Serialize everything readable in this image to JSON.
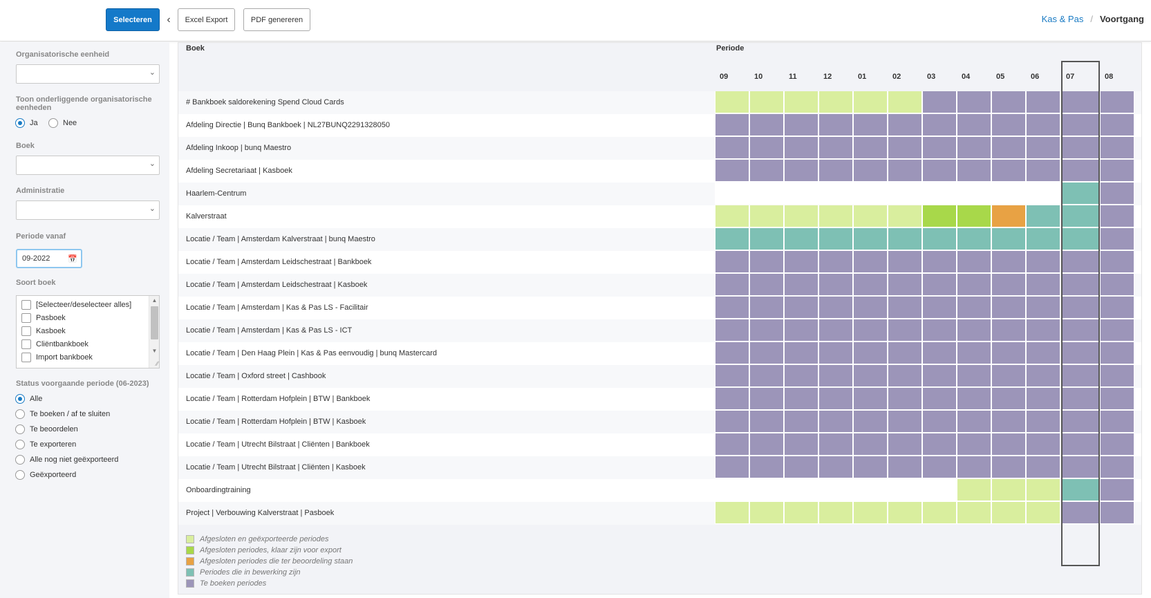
{
  "toolbar": {
    "select_label": "Selecteren",
    "excel_label": "Excel Export",
    "pdf_label": "PDF genereren"
  },
  "breadcrumb": {
    "parent": "Kas & Pas",
    "separator": "/",
    "current": "Voortgang"
  },
  "filters": {
    "org_unit_label": "Organisatorische eenheid",
    "org_unit_value": "",
    "sub_units_label_line1": "Toon onderliggende organisatorische",
    "sub_units_label_line2": "eenheden",
    "sub_units_options": [
      "Ja",
      "Nee"
    ],
    "sub_units_selected": "Ja",
    "book_label": "Boek",
    "book_value": "",
    "admin_label": "Administratie",
    "admin_value": "",
    "period_from_label": "Periode vanaf",
    "period_from_value": "09-2022",
    "book_type_label": "Soort boek",
    "book_type_options": [
      "[Selecteer/deselecteer alles]",
      "Pasboek",
      "Kasboek",
      "Cliëntbankboek",
      "Import bankboek"
    ],
    "status_label": "Status voorgaande periode (06-2023)",
    "status_options": [
      "Alle",
      "Te boeken / af te sluiten",
      "Te beoordelen",
      "Te exporteren",
      "Alle nog niet geëxporteerd",
      "Geëxporteerd"
    ],
    "status_selected": "Alle"
  },
  "grid": {
    "col_book": "Boek",
    "col_period": "Periode",
    "periods": [
      "09",
      "10",
      "11",
      "12",
      "01",
      "02",
      "03",
      "04",
      "05",
      "06",
      "07",
      "08"
    ],
    "highlighted_period": "07",
    "rows": [
      {
        "label": "# Bankboek saldorekening Spend Cloud Cards",
        "statuses": [
          "lg",
          "lg",
          "lg",
          "lg",
          "lg",
          "lg",
          "p",
          "p",
          "p",
          "p",
          "p",
          "p"
        ]
      },
      {
        "label": "Afdeling Directie | Bunq Bankboek | NL27BUNQ2291328050",
        "statuses": [
          "p",
          "p",
          "p",
          "p",
          "p",
          "p",
          "p",
          "p",
          "p",
          "p",
          "p",
          "p"
        ]
      },
      {
        "label": "Afdeling Inkoop | bunq Maestro",
        "statuses": [
          "p",
          "p",
          "p",
          "p",
          "p",
          "p",
          "p",
          "p",
          "p",
          "p",
          "p",
          "p"
        ]
      },
      {
        "label": "Afdeling Secretariaat | Kasboek",
        "statuses": [
          "p",
          "p",
          "p",
          "p",
          "p",
          "p",
          "p",
          "p",
          "p",
          "p",
          "p",
          "p"
        ]
      },
      {
        "label": "Haarlem-Centrum",
        "statuses": [
          "w",
          "w",
          "w",
          "w",
          "w",
          "w",
          "w",
          "w",
          "w",
          "w",
          "t",
          "p"
        ]
      },
      {
        "label": "Kalverstraat",
        "statuses": [
          "lg",
          "lg",
          "lg",
          "lg",
          "lg",
          "lg",
          "g",
          "g",
          "o",
          "t",
          "t",
          "p"
        ]
      },
      {
        "label": "Locatie / Team | Amsterdam Kalverstraat | bunq Maestro",
        "statuses": [
          "t",
          "t",
          "t",
          "t",
          "t",
          "t",
          "t",
          "t",
          "t",
          "t",
          "t",
          "p"
        ]
      },
      {
        "label": "Locatie / Team | Amsterdam Leidschestraat | Bankboek",
        "statuses": [
          "p",
          "p",
          "p",
          "p",
          "p",
          "p",
          "p",
          "p",
          "p",
          "p",
          "p",
          "p"
        ]
      },
      {
        "label": "Locatie / Team | Amsterdam Leidschestraat | Kasboek",
        "statuses": [
          "p",
          "p",
          "p",
          "p",
          "p",
          "p",
          "p",
          "p",
          "p",
          "p",
          "p",
          "p"
        ]
      },
      {
        "label": "Locatie / Team | Amsterdam | Kas & Pas LS - Facilitair",
        "statuses": [
          "p",
          "p",
          "p",
          "p",
          "p",
          "p",
          "p",
          "p",
          "p",
          "p",
          "p",
          "p"
        ]
      },
      {
        "label": "Locatie / Team | Amsterdam | Kas & Pas LS - ICT",
        "statuses": [
          "p",
          "p",
          "p",
          "p",
          "p",
          "p",
          "p",
          "p",
          "p",
          "p",
          "p",
          "p"
        ]
      },
      {
        "label": "Locatie / Team | Den Haag Plein | Kas & Pas eenvoudig | bunq Mastercard",
        "statuses": [
          "p",
          "p",
          "p",
          "p",
          "p",
          "p",
          "p",
          "p",
          "p",
          "p",
          "p",
          "p"
        ]
      },
      {
        "label": "Locatie / Team | Oxford street | Cashbook",
        "statuses": [
          "p",
          "p",
          "p",
          "p",
          "p",
          "p",
          "p",
          "p",
          "p",
          "p",
          "p",
          "p"
        ]
      },
      {
        "label": "Locatie / Team | Rotterdam Hofplein | BTW | Bankboek",
        "statuses": [
          "p",
          "p",
          "p",
          "p",
          "p",
          "p",
          "p",
          "p",
          "p",
          "p",
          "p",
          "p"
        ]
      },
      {
        "label": "Locatie / Team | Rotterdam Hofplein | BTW | Kasboek",
        "statuses": [
          "p",
          "p",
          "p",
          "p",
          "p",
          "p",
          "p",
          "p",
          "p",
          "p",
          "p",
          "p"
        ]
      },
      {
        "label": "Locatie / Team | Utrecht Bilstraat | Cliënten | Bankboek",
        "statuses": [
          "p",
          "p",
          "p",
          "p",
          "p",
          "p",
          "p",
          "p",
          "p",
          "p",
          "p",
          "p"
        ]
      },
      {
        "label": "Locatie / Team | Utrecht Bilstraat | Cliënten | Kasboek",
        "statuses": [
          "p",
          "p",
          "p",
          "p",
          "p",
          "p",
          "p",
          "p",
          "p",
          "p",
          "p",
          "p"
        ]
      },
      {
        "label": "Onboardingtraining",
        "statuses": [
          "w",
          "w",
          "w",
          "w",
          "w",
          "w",
          "w",
          "lg",
          "lg",
          "lg",
          "t",
          "p"
        ]
      },
      {
        "label": "Project | Verbouwing Kalverstraat | Pasboek",
        "statuses": [
          "lg",
          "lg",
          "lg",
          "lg",
          "lg",
          "lg",
          "lg",
          "lg",
          "lg",
          "lg",
          "p",
          "p"
        ]
      }
    ]
  },
  "legend": [
    {
      "key": "lg",
      "label": "Afgesloten en geëxporteerde periodes",
      "color": "#d9ee9e"
    },
    {
      "key": "g",
      "label": "Afgesloten periodes, klaar zijn voor export",
      "color": "#a8d84a"
    },
    {
      "key": "o",
      "label": "Afgesloten periodes die ter beoordeling staan",
      "color": "#e8a244"
    },
    {
      "key": "t",
      "label": "Periodes die in bewerking zijn",
      "color": "#7ec0b4"
    },
    {
      "key": "p",
      "label": "Te boeken periodes",
      "color": "#9c95b9"
    }
  ]
}
